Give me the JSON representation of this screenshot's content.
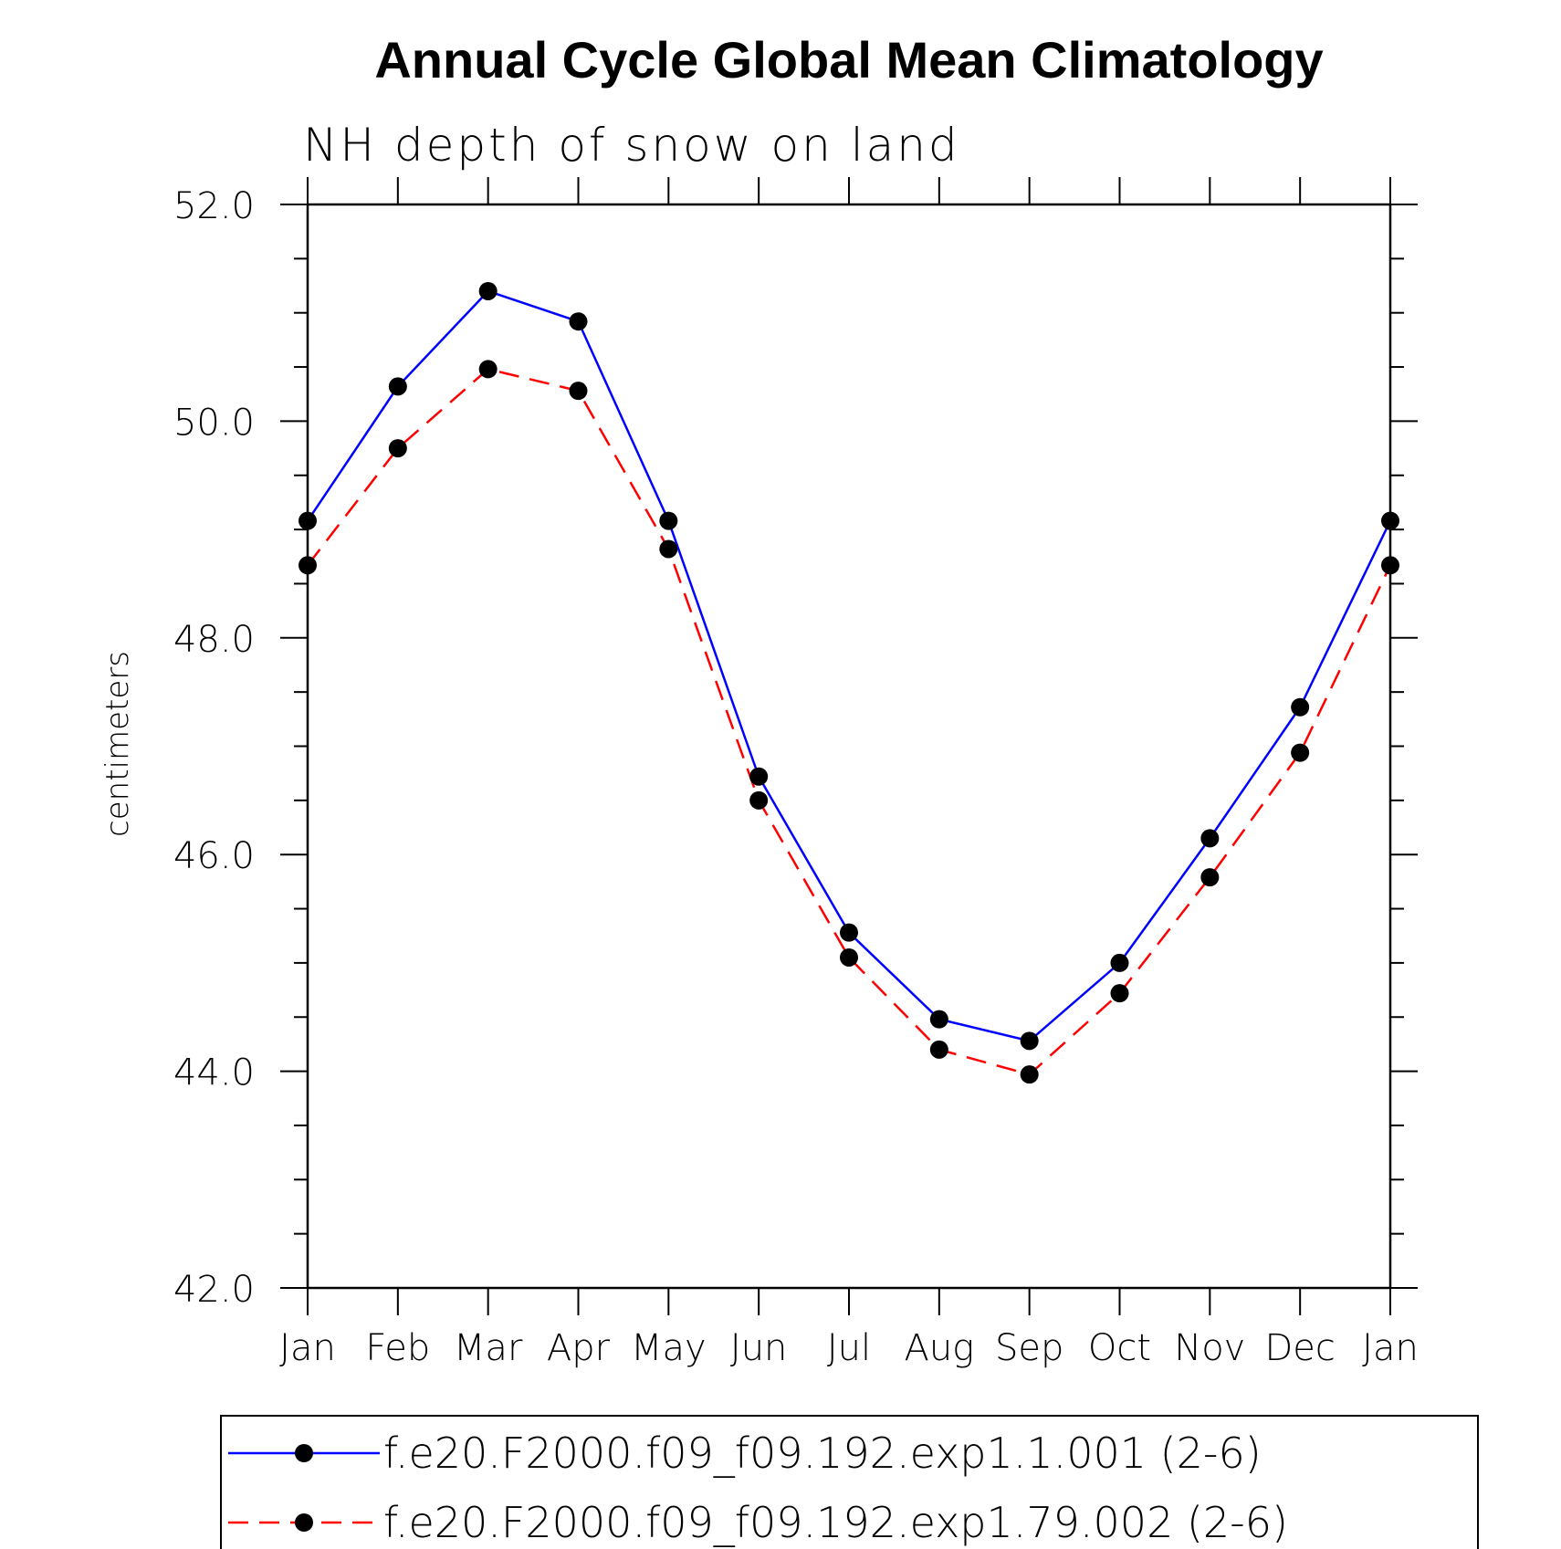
{
  "chart_data": {
    "type": "line",
    "title": "Annual Cycle Global Mean Climatology",
    "subtitle": "NH depth of snow on land",
    "xlabel": "",
    "ylabel": "centimeters",
    "categories": [
      "Jan",
      "Feb",
      "Mar",
      "Apr",
      "May",
      "Jun",
      "Jul",
      "Aug",
      "Sep",
      "Oct",
      "Nov",
      "Dec",
      "Jan"
    ],
    "ylim": [
      42.0,
      52.0
    ],
    "y_major_ticks": [
      "42.0",
      "44.0",
      "46.0",
      "48.0",
      "50.0",
      "52.0"
    ],
    "y_minor_step": 0.5,
    "grid": false,
    "legend_position": "bottom",
    "series": [
      {
        "name": "f.e20.F2000.f09_f09.192.exp1.1.001 (2-6)",
        "color": "#0000ff",
        "line_style": "solid",
        "marker": "filled-circle",
        "values": [
          49.08,
          50.32,
          51.2,
          50.92,
          49.08,
          46.72,
          45.28,
          44.48,
          44.28,
          45.0,
          46.15,
          47.36,
          49.08
        ]
      },
      {
        "name": "f.e20.F2000.f09_f09.192.exp1.79.002 (2-6)",
        "color": "#ff0000",
        "line_style": "dashed",
        "marker": "filled-circle",
        "values": [
          48.67,
          49.75,
          50.48,
          50.28,
          48.82,
          46.5,
          45.05,
          44.2,
          43.97,
          44.72,
          45.79,
          46.94,
          48.67
        ]
      }
    ]
  }
}
